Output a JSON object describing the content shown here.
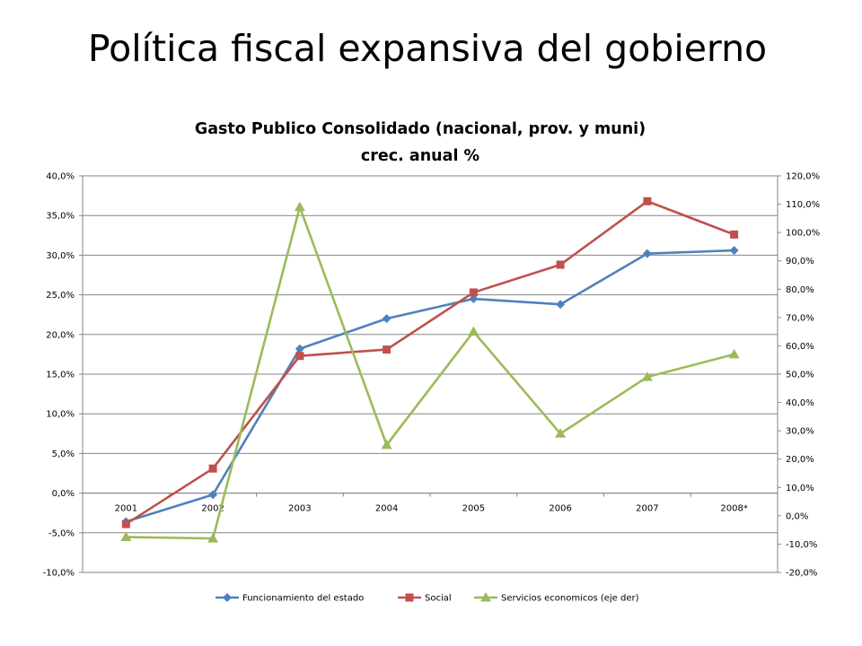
{
  "slide": {
    "title": "Política fiscal expansiva del gobierno"
  },
  "chart_data": {
    "type": "line",
    "title": "Gasto Publico Consolidado (nacional, prov. y muni)",
    "subtitle": "crec. anual %",
    "categories": [
      "2001",
      "2002",
      "2003",
      "2004",
      "2005",
      "2006",
      "2007",
      "2008*"
    ],
    "y_left": {
      "min": -10,
      "max": 40,
      "step": 5,
      "tick_labels": [
        "-10,0%",
        "-5,0%",
        "0,0%",
        "5,0%",
        "10,0%",
        "15,0%",
        "20,0%",
        "25,0%",
        "30,0%",
        "35,0%",
        "40,0%"
      ]
    },
    "y_right": {
      "min": -20,
      "max": 120,
      "step": 10,
      "tick_labels": [
        "-20,0%",
        "-10,0%",
        "0,0%",
        "10,0%",
        "20,0%",
        "30,0%",
        "40,0%",
        "50,0%",
        "60,0%",
        "70,0%",
        "80,0%",
        "90,0%",
        "100,0%",
        "110,0%",
        "120,0%"
      ]
    },
    "grid": "horizontal",
    "legend_position": "bottom",
    "series": [
      {
        "name": "Funcionamiento del estado",
        "axis": "left",
        "color": "#4F81BD",
        "marker": "diamond",
        "values": [
          -3.6,
          -0.2,
          18.2,
          22.0,
          24.5,
          23.8,
          30.2,
          30.6
        ]
      },
      {
        "name": "Social",
        "axis": "left",
        "color": "#C0504D",
        "marker": "square",
        "values": [
          -3.9,
          3.1,
          17.3,
          18.1,
          25.3,
          28.8,
          36.8,
          32.6
        ]
      },
      {
        "name": "Servicios economicos (eje der)",
        "axis": "right",
        "color": "#9BBB59",
        "marker": "triangle",
        "values": [
          -7.5,
          -8.0,
          109.0,
          25.0,
          65.0,
          29.0,
          49.0,
          57.0
        ]
      }
    ]
  }
}
